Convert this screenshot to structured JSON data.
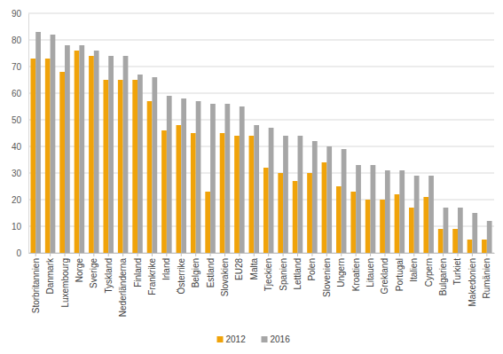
{
  "chart_data": {
    "type": "bar",
    "categories": [
      "Storbritannien",
      "Danmark",
      "Luxembourg",
      "Norge",
      "Sverige",
      "Tyskland",
      "Nederländerna",
      "Finland",
      "Frankrike",
      "Irland",
      "Österrike",
      "Belgien",
      "Estland",
      "Slovakien",
      "EU28",
      "Malta",
      "Tjeckien",
      "Spanien",
      "Lettland",
      "Polen",
      "Slovenien",
      "Ungern",
      "Kroatien",
      "Litauen",
      "Grekland",
      "Portugal",
      "Italien",
      "Cypern",
      "Bulgarien",
      "Turkiet",
      "Makedonien",
      "Rumänien"
    ],
    "series": [
      {
        "name": "2012",
        "color": "#f0a30a",
        "values": [
          73,
          73,
          68,
          76,
          74,
          65,
          65,
          65,
          57,
          46,
          48,
          45,
          23,
          45,
          44,
          44,
          32,
          30,
          27,
          30,
          34,
          25,
          23,
          20,
          20,
          22,
          17,
          21,
          9,
          9,
          5,
          5
        ]
      },
      {
        "name": "2016",
        "color": "#a6a6a6",
        "values": [
          83,
          82,
          78,
          78,
          76,
          74,
          74,
          67,
          66,
          59,
          58,
          57,
          56,
          56,
          55,
          48,
          47,
          44,
          44,
          42,
          40,
          39,
          33,
          33,
          31,
          31,
          29,
          29,
          17,
          17,
          15,
          12
        ]
      }
    ],
    "ylim": [
      0,
      90
    ],
    "yticks": [
      0,
      10,
      20,
      30,
      40,
      50,
      60,
      70,
      80,
      90
    ],
    "grid": true,
    "legend": "bottom"
  }
}
